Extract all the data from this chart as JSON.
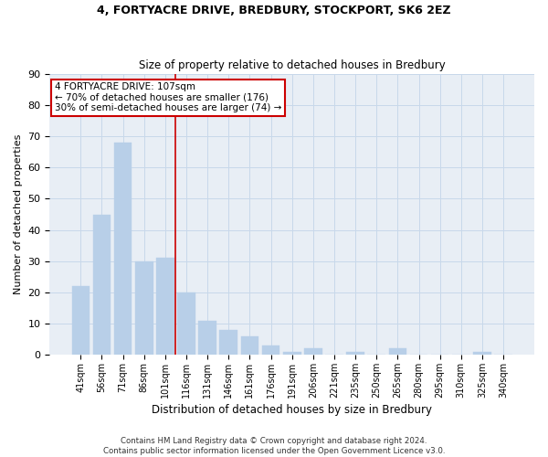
{
  "title1": "4, FORTYACRE DRIVE, BREDBURY, STOCKPORT, SK6 2EZ",
  "title2": "Size of property relative to detached houses in Bredbury",
  "xlabel": "Distribution of detached houses by size in Bredbury",
  "ylabel": "Number of detached properties",
  "categories": [
    "41sqm",
    "56sqm",
    "71sqm",
    "86sqm",
    "101sqm",
    "116sqm",
    "131sqm",
    "146sqm",
    "161sqm",
    "176sqm",
    "191sqm",
    "206sqm",
    "221sqm",
    "235sqm",
    "250sqm",
    "265sqm",
    "280sqm",
    "295sqm",
    "310sqm",
    "325sqm",
    "340sqm"
  ],
  "values": [
    22,
    45,
    68,
    30,
    31,
    20,
    11,
    8,
    6,
    3,
    1,
    2,
    0,
    1,
    0,
    2,
    0,
    0,
    0,
    1,
    0
  ],
  "bar_color": "#b8cfe8",
  "bar_edge_color": "#b8cfe8",
  "grid_color": "#c8d8ea",
  "background_color": "#e8eef5",
  "vline_x": 4.5,
  "annotation_text": "4 FORTYACRE DRIVE: 107sqm\n← 70% of detached houses are smaller (176)\n30% of semi-detached houses are larger (74) →",
  "annotation_box_color": "#ffffff",
  "annotation_border_color": "#cc0000",
  "footer": "Contains HM Land Registry data © Crown copyright and database right 2024.\nContains public sector information licensed under the Open Government Licence v3.0.",
  "ylim": [
    0,
    90
  ],
  "yticks": [
    0,
    10,
    20,
    30,
    40,
    50,
    60,
    70,
    80,
    90
  ]
}
